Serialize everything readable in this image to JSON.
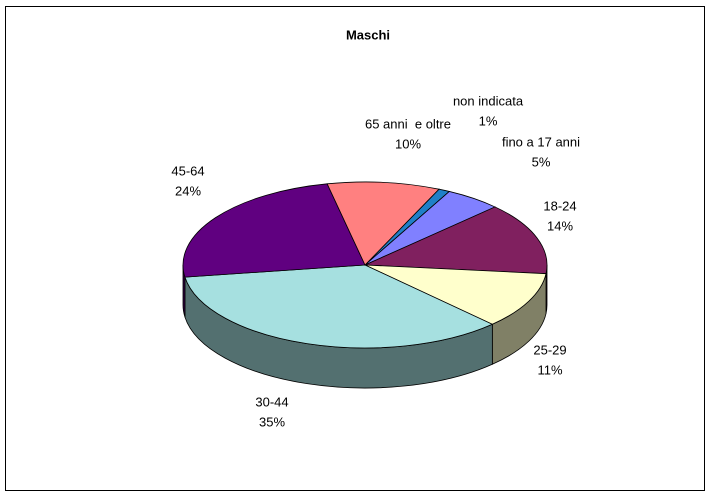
{
  "chart_data": {
    "type": "pie",
    "title": "Maschi",
    "categories": [
      "non indicata",
      "fino a 17 anni",
      "18-24",
      "25-29",
      "30-44",
      "45-64",
      "65 anni  e oltre"
    ],
    "values": [
      1,
      5,
      14,
      11,
      35,
      24,
      10
    ],
    "value_labels": [
      "1%",
      "5%",
      "14%",
      "11%",
      "35%",
      "24%",
      "10%"
    ],
    "colors": [
      "#2080c8",
      "#8080ff",
      "#80205f",
      "#ffffcc",
      "#a6e0e0",
      "#600080",
      "#ff8080"
    ]
  }
}
